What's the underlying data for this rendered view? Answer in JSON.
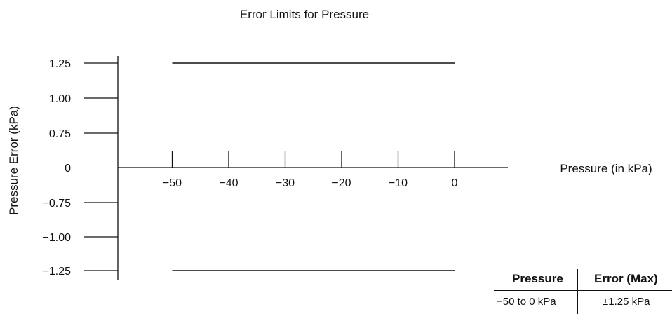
{
  "chart_data": {
    "type": "line",
    "title": "Error Limits for Pressure",
    "xlabel": "Pressure (in kPa)",
    "ylabel": "Pressure Error (kPa)",
    "x_ticks": [
      -50,
      -40,
      -30,
      -20,
      -10,
      0
    ],
    "x_tick_labels": [
      "−50",
      "−40",
      "−30",
      "−20",
      "−10",
      "0"
    ],
    "y_ticks": [
      1.25,
      1.0,
      0.75,
      0,
      -0.75,
      -1.0,
      -1.25
    ],
    "y_tick_labels": [
      "1.25",
      "1.00",
      "0.75",
      "0",
      "−0.75",
      "−1.00",
      "−1.25"
    ],
    "series": [
      {
        "x": [
          -50,
          0
        ],
        "y": [
          1.25,
          1.25
        ]
      },
      {
        "x": [
          -50,
          0
        ],
        "y": [
          -1.25,
          -1.25
        ]
      }
    ],
    "grid": false,
    "legend": false
  },
  "table": {
    "headers": [
      "Pressure",
      "Error (Max)"
    ],
    "rows": [
      [
        "−50 to 0 kPa",
        "±1.25 kPa"
      ]
    ]
  }
}
